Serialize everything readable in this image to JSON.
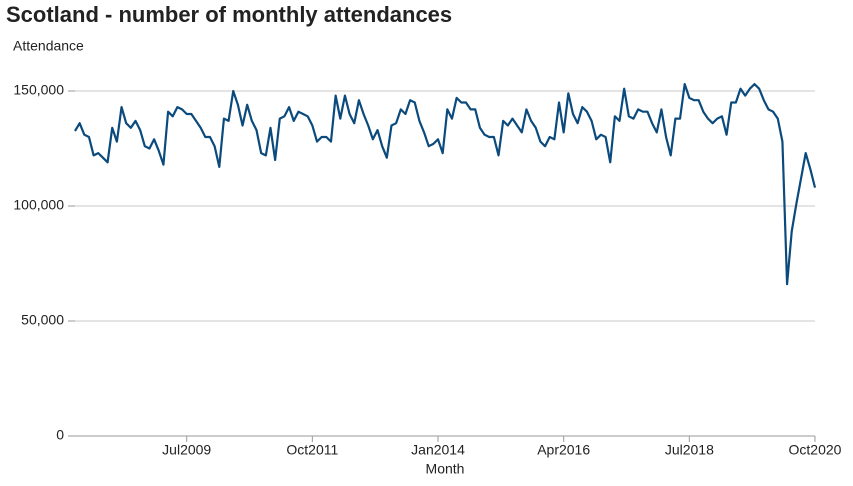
{
  "chart_data": {
    "type": "line",
    "title": "Scotland - number of monthly attendances",
    "y_label": "Attendance",
    "x_label": "Month",
    "color": "#0b4a7d",
    "grid": true,
    "ylim": [
      0,
      155000
    ],
    "yticks": [
      0,
      {
        "value": 50000,
        "label": "50,000"
      },
      {
        "value": 100000,
        "label": "100,000"
      },
      {
        "value": 150000,
        "label": "150,000"
      }
    ],
    "categories": [
      null,
      null,
      null,
      null,
      null,
      null,
      null,
      null,
      null,
      null,
      null,
      null,
      null,
      null,
      null,
      null,
      null,
      null,
      null,
      null,
      null,
      null,
      null,
      null,
      "Jul2009",
      null,
      null,
      null,
      null,
      null,
      null,
      null,
      null,
      null,
      null,
      null,
      null,
      null,
      null,
      null,
      null,
      null,
      null,
      null,
      null,
      null,
      null,
      null,
      null,
      null,
      null,
      "Oct2011",
      null,
      null,
      null,
      null,
      null,
      null,
      null,
      null,
      null,
      null,
      null,
      null,
      null,
      null,
      null,
      null,
      null,
      null,
      null,
      null,
      null,
      null,
      null,
      null,
      null,
      null,
      "Jan2014",
      null,
      null,
      null,
      null,
      null,
      null,
      null,
      null,
      null,
      null,
      null,
      null,
      null,
      null,
      null,
      null,
      null,
      null,
      null,
      null,
      null,
      null,
      null,
      null,
      null,
      null,
      "Apr2016",
      null,
      null,
      null,
      null,
      null,
      null,
      null,
      null,
      null,
      null,
      null,
      null,
      null,
      null,
      null,
      null,
      null,
      null,
      null,
      null,
      null,
      null,
      null,
      null,
      null,
      null,
      "Jul2018",
      null,
      null,
      null,
      null,
      null,
      null,
      null,
      null,
      null,
      null,
      null,
      null,
      null,
      null,
      null,
      null,
      null,
      null,
      null,
      null,
      null,
      null,
      null,
      null,
      null,
      null,
      "Oct2020"
    ],
    "values": [
      132600,
      136000,
      131000,
      130000,
      122000,
      123000,
      121000,
      119000,
      134000,
      128000,
      143000,
      136000,
      134000,
      137000,
      133000,
      126000,
      125000,
      129000,
      124000,
      118000,
      141000,
      139000,
      143000,
      142000,
      140000,
      140000,
      137000,
      134000,
      130000,
      130000,
      126000,
      117000,
      138000,
      137000,
      150000,
      144000,
      135000,
      144000,
      137000,
      133000,
      123000,
      122000,
      134000,
      120000,
      138000,
      139000,
      143000,
      137000,
      141000,
      140000,
      139000,
      135000,
      128000,
      130000,
      130000,
      128000,
      148000,
      138000,
      148000,
      140000,
      136000,
      146000,
      140000,
      135000,
      129000,
      133000,
      126000,
      121000,
      135000,
      136000,
      142000,
      140000,
      146000,
      145000,
      137000,
      132000,
      126000,
      127000,
      129000,
      123000,
      142000,
      138000,
      147000,
      145000,
      145000,
      142000,
      142000,
      134000,
      131000,
      130000,
      130000,
      122000,
      137000,
      135000,
      138000,
      135000,
      132000,
      142000,
      137000,
      134000,
      128000,
      126000,
      130000,
      129000,
      145000,
      132000,
      149000,
      140000,
      136000,
      143000,
      141000,
      137000,
      129000,
      131000,
      130000,
      119000,
      139000,
      137000,
      151000,
      139000,
      138000,
      142000,
      141000,
      141000,
      136000,
      132000,
      142000,
      130000,
      122000,
      138000,
      138000,
      153000,
      147000,
      146000,
      146000,
      141000,
      138000,
      136000,
      138000,
      139000,
      131000,
      145000,
      145000,
      151000,
      148000,
      151000,
      153000,
      151000,
      146000,
      142000,
      141000,
      138000,
      128000,
      66000,
      89000,
      101000,
      112000,
      123000,
      116000,
      108000
    ]
  }
}
